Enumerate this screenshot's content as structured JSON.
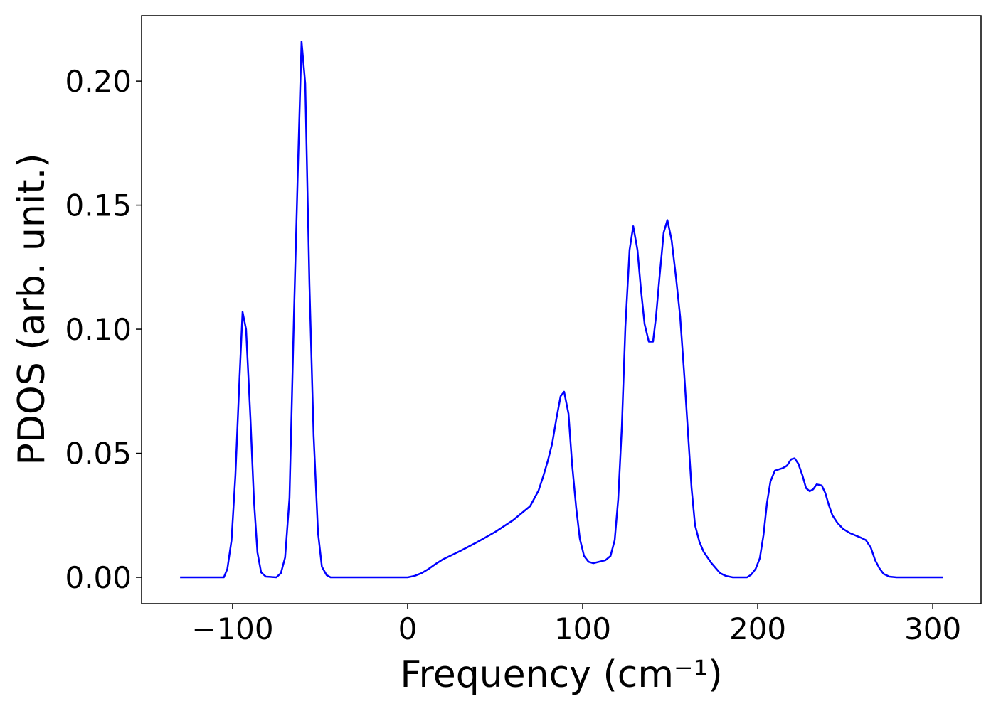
{
  "chart_data": {
    "type": "line",
    "x_label": "Frequency (cm⁻¹)",
    "y_label": "PDOS (arb. unit.)",
    "xlim": [
      -152,
      327.6
    ],
    "ylim": [
      -0.0106,
      0.2264
    ],
    "xticks": [
      {
        "value": -100,
        "label": "−100"
      },
      0,
      100,
      200,
      300
    ],
    "yticks": [
      {
        "value": 0,
        "label": "0.00"
      },
      {
        "value": 0.05,
        "label": "0.05"
      },
      {
        "value": 0.1,
        "label": "0.10"
      },
      {
        "value": 0.15,
        "label": "0.15"
      },
      {
        "value": 0.2,
        "label": "0.20"
      }
    ],
    "series": [
      {
        "color": "#0000ff",
        "x": [
          -130,
          -105,
          -103,
          -100.6,
          -98.4,
          -96,
          -94.3,
          -92.3,
          -89.8,
          -87.8,
          -85.8,
          -83.7,
          -81,
          -75,
          -72.4,
          -70,
          -67.5,
          -65,
          -62.6,
          -60.6,
          -58.5,
          -56.1,
          -53.7,
          -51.2,
          -49,
          -46.3,
          -44,
          0,
          4,
          8,
          12,
          16,
          20,
          30,
          40,
          50,
          60,
          70,
          74.8,
          77.6,
          80.1,
          82.6,
          85,
          87.4,
          89.4,
          91.9,
          93.9,
          96.3,
          98.4,
          100.8,
          103.3,
          106,
          113,
          115.9,
          118.3,
          120.3,
          122.4,
          124.4,
          126.8,
          128.9,
          131.3,
          133.3,
          135.4,
          137.8,
          140.2,
          141.9,
          143.9,
          146.3,
          148.4,
          150.8,
          153.3,
          155.7,
          158.1,
          160.2,
          162.2,
          164.2,
          166.7,
          169.1,
          173.6,
          178.5,
          181.7,
          185.8,
          193.9,
          196.3,
          198.8,
          201.2,
          203.3,
          205.3,
          207.3,
          209.8,
          214.2,
          216.7,
          219.1,
          221.1,
          223.2,
          225.6,
          227.6,
          229.7,
          231.7,
          233.7,
          236.6,
          238.6,
          240.7,
          242.7,
          245.5,
          248.8,
          252.8,
          258.9,
          261.8,
          264.6,
          267.1,
          269.5,
          271.9,
          275.2,
          279.3,
          306
        ],
        "values": [
          0,
          0,
          0.0034,
          0.015,
          0.041,
          0.081,
          0.107,
          0.1,
          0.064,
          0.031,
          0.01,
          0.002,
          0.0003,
          0,
          0.0017,
          0.008,
          0.032,
          0.104,
          0.167,
          0.216,
          0.199,
          0.118,
          0.057,
          0.018,
          0.0043,
          0.0009,
          0,
          0,
          0.0006,
          0.0017,
          0.0034,
          0.0054,
          0.0072,
          0.0106,
          0.0143,
          0.0183,
          0.0229,
          0.0287,
          0.035,
          0.041,
          0.047,
          0.054,
          0.064,
          0.073,
          0.0748,
          0.066,
          0.046,
          0.028,
          0.0155,
          0.0086,
          0.0063,
          0.0057,
          0.0069,
          0.0086,
          0.015,
          0.0315,
          0.061,
          0.101,
          0.132,
          0.1415,
          0.132,
          0.116,
          0.102,
          0.095,
          0.095,
          0.105,
          0.121,
          0.139,
          0.144,
          0.136,
          0.121,
          0.105,
          0.081,
          0.058,
          0.036,
          0.021,
          0.0143,
          0.0103,
          0.0057,
          0.0017,
          0.0006,
          0,
          0,
          0.0011,
          0.0034,
          0.0077,
          0.017,
          0.03,
          0.0387,
          0.043,
          0.044,
          0.045,
          0.0476,
          0.048,
          0.0458,
          0.041,
          0.036,
          0.0347,
          0.0355,
          0.0375,
          0.037,
          0.034,
          0.029,
          0.025,
          0.022,
          0.0195,
          0.0178,
          0.016,
          0.015,
          0.012,
          0.0069,
          0.0037,
          0.0014,
          0.0003,
          0,
          0
        ]
      }
    ]
  }
}
